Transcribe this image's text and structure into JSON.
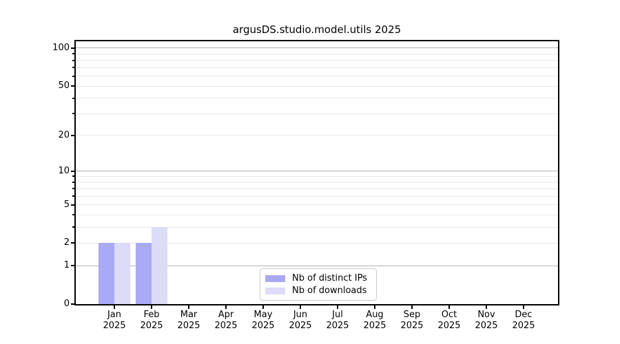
{
  "chart_data": {
    "type": "bar",
    "title": "argusDS.studio.model.utils 2025",
    "categories": [
      "Jan 2025",
      "Feb 2025",
      "Mar 2025",
      "Apr 2025",
      "May 2025",
      "Jun 2025",
      "Jul 2025",
      "Aug 2025",
      "Sep 2025",
      "Oct 2025",
      "Nov 2025",
      "Dec 2025"
    ],
    "x_tick_line1": [
      "Jan",
      "Feb",
      "Mar",
      "Apr",
      "May",
      "Jun",
      "Jul",
      "Aug",
      "Sep",
      "Oct",
      "Nov",
      "Dec"
    ],
    "x_tick_line2": [
      "2025",
      "2025",
      "2025",
      "2025",
      "2025",
      "2025",
      "2025",
      "2025",
      "2025",
      "2025",
      "2025",
      "2025"
    ],
    "series": [
      {
        "name": "Nb of distinct IPs",
        "color": "#a9a9f4",
        "values": [
          2,
          2,
          0,
          0,
          0,
          0,
          0,
          0,
          0,
          0,
          0,
          0
        ]
      },
      {
        "name": "Nb of downloads",
        "color": "#dcdcf8",
        "values": [
          2,
          3,
          0,
          0,
          0,
          0,
          0,
          0,
          0,
          0,
          0,
          0
        ]
      }
    ],
    "y_axis": {
      "scale": "log1p",
      "tick_labels": [
        "0",
        "1",
        "2",
        "5",
        "10",
        "20",
        "50",
        "100"
      ],
      "tick_values": [
        0,
        1,
        2,
        5,
        10,
        20,
        50,
        100
      ],
      "minor_tick_values": [
        3,
        4,
        6,
        7,
        8,
        9,
        30,
        40,
        60,
        70,
        80,
        90
      ],
      "major_gridline_values": [
        1,
        10,
        100
      ],
      "ylim": [
        0,
        110
      ]
    },
    "legend_position": "lower center",
    "grid": true
  }
}
